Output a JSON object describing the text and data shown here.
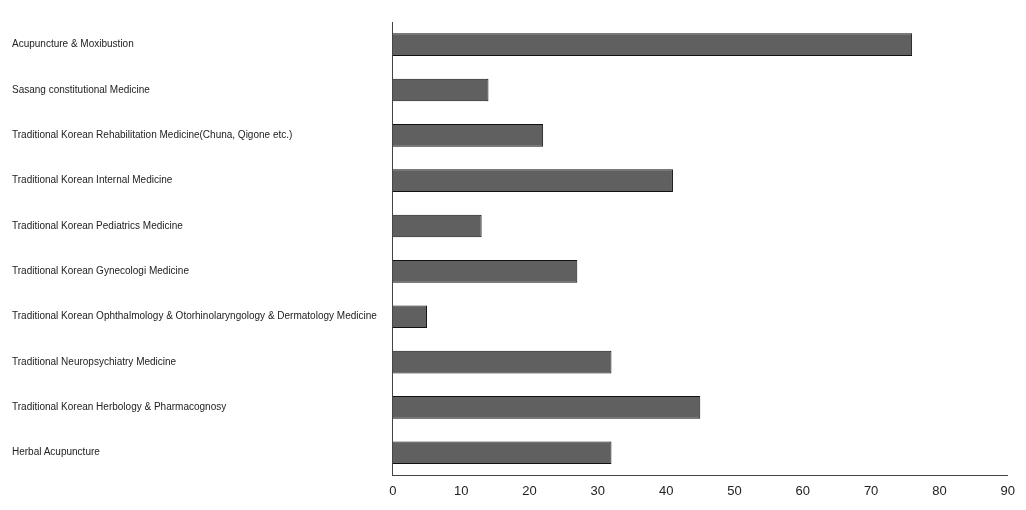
{
  "chart_data": {
    "type": "bar",
    "orientation": "horizontal",
    "categories": [
      "Acupuncture & Moxibustion",
      "Sasang constitutional Medicine",
      "Traditional Korean Rehabilitation Medicine(Chuna, Qigone etc.)",
      "Traditional Korean Internal Medicine",
      "Traditional Korean Pediatrics Medicine",
      "Traditional Korean Gynecologi Medicine",
      "Traditional Korean Ophthalmology & Otorhinolaryngology & Dermatology Medicine",
      "Traditional Neuropsychiatry Medicine",
      "Traditional Korean Herbology & Pharmacognosy",
      "Herbal Acupuncture"
    ],
    "values": [
      76,
      14,
      22,
      41,
      13,
      27,
      5,
      32,
      45,
      32
    ],
    "color": "#606060",
    "xlim": [
      0,
      90
    ],
    "xticks": [
      0,
      10,
      20,
      30,
      40,
      50,
      60,
      70,
      80,
      90
    ],
    "grid": false,
    "legend": false
  }
}
